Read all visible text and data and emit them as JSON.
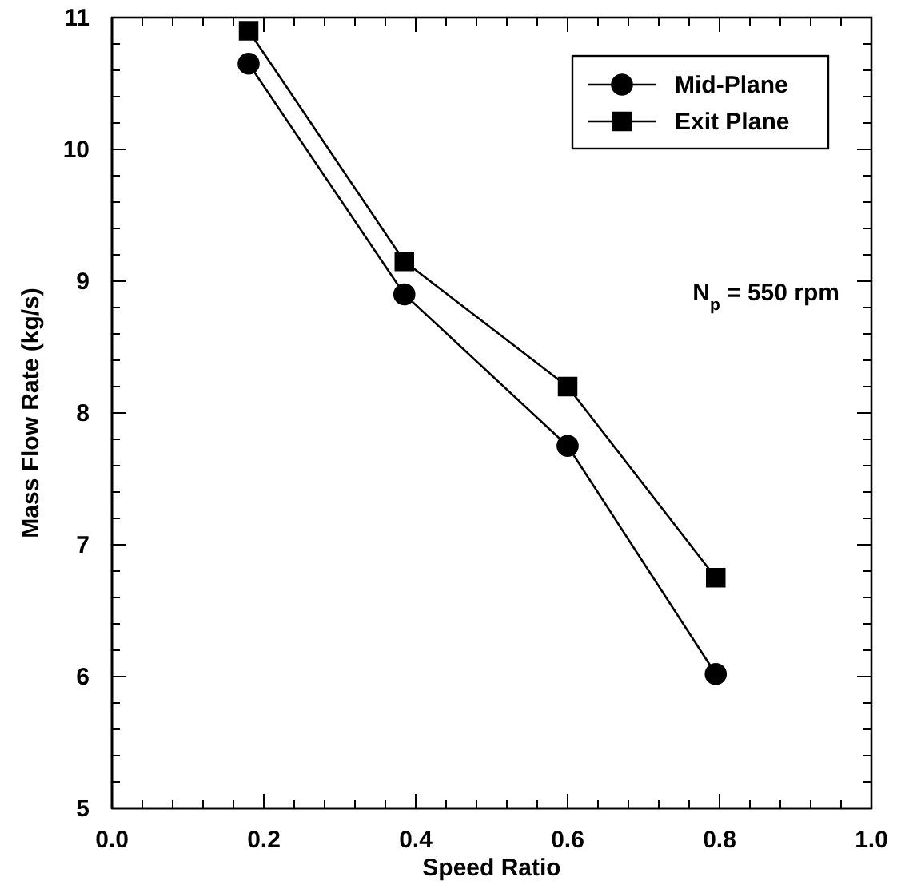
{
  "chart_data": {
    "type": "line",
    "xlabel": "Speed Ratio",
    "ylabel": "Mass Flow Rate (kg/s)",
    "annotations": [
      "N$_{p}$ = 550 rpm"
    ],
    "xlim": [
      0,
      1
    ],
    "xticks": [
      {
        "value": 0,
        "label": "0.0"
      },
      {
        "value": 0.2,
        "label": "0.2"
      },
      {
        "value": 0.4,
        "label": "0.4"
      },
      {
        "value": 0.6,
        "label": "0.6"
      },
      {
        "value": 0.8,
        "label": "0.8"
      },
      {
        "value": 1,
        "label": "1.0"
      }
    ],
    "ylim": [
      5,
      11
    ],
    "yticks": [
      5,
      6,
      7,
      8,
      9,
      10,
      11
    ],
    "grid": false,
    "legend": "top right",
    "line_style": "solid",
    "series": [
      {
        "name": "Mid-Plane",
        "color": "#000000",
        "marker": "circle",
        "x": [
          0.18,
          0.385,
          0.6,
          0.795
        ],
        "values": [
          10.65,
          8.9,
          7.75,
          6.02
        ]
      },
      {
        "name": "Exit Plane",
        "color": "#000000",
        "marker": "square",
        "x": [
          0.18,
          0.385,
          0.6,
          0.795
        ],
        "values": [
          10.9,
          9.15,
          8.2,
          6.75
        ]
      }
    ]
  }
}
